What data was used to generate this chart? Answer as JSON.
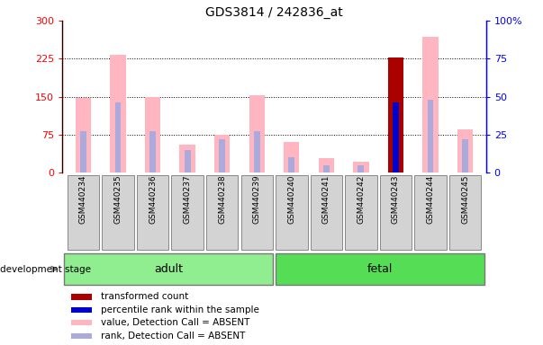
{
  "title": "GDS3814 / 242836_at",
  "samples": [
    "GSM440234",
    "GSM440235",
    "GSM440236",
    "GSM440237",
    "GSM440238",
    "GSM440239",
    "GSM440240",
    "GSM440241",
    "GSM440242",
    "GSM440243",
    "GSM440244",
    "GSM440245"
  ],
  "adult_count": 6,
  "fetal_count": 6,
  "pink_values": [
    148,
    232,
    150,
    55,
    75,
    153,
    60,
    28,
    22,
    0,
    268,
    85
  ],
  "blue_rank_values": [
    27,
    46,
    27,
    15,
    22,
    27,
    10,
    5,
    5,
    0,
    48,
    22
  ],
  "red_values": [
    0,
    0,
    0,
    0,
    0,
    0,
    0,
    0,
    0,
    228,
    0,
    0
  ],
  "blue_values": [
    0,
    0,
    0,
    0,
    0,
    0,
    0,
    0,
    0,
    46,
    0,
    0
  ],
  "absent_pink": [
    true,
    true,
    true,
    true,
    true,
    true,
    true,
    true,
    true,
    false,
    true,
    true
  ],
  "ylim_left": [
    0,
    300
  ],
  "ylim_right": [
    0,
    100
  ],
  "yticks_left": [
    0,
    75,
    150,
    225,
    300
  ],
  "yticks_right": [
    0,
    25,
    50,
    75,
    100
  ],
  "ytick_labels_left": [
    "0",
    "75",
    "150",
    "225",
    "300"
  ],
  "ytick_labels_right": [
    "0",
    "25",
    "50",
    "75",
    "100%"
  ],
  "color_pink": "#FFB6C1",
  "color_light_blue": "#AAAADD",
  "color_red": "#AA0000",
  "color_blue": "#0000CC",
  "color_adult_bg": "#90EE90",
  "color_fetal_bg": "#55DD55",
  "legend_items": [
    {
      "color": "#AA0000",
      "label": "transformed count"
    },
    {
      "color": "#0000CC",
      "label": "percentile rank within the sample"
    },
    {
      "color": "#FFB6C1",
      "label": "value, Detection Call = ABSENT"
    },
    {
      "color": "#AAAADD",
      "label": "rank, Detection Call = ABSENT"
    }
  ]
}
